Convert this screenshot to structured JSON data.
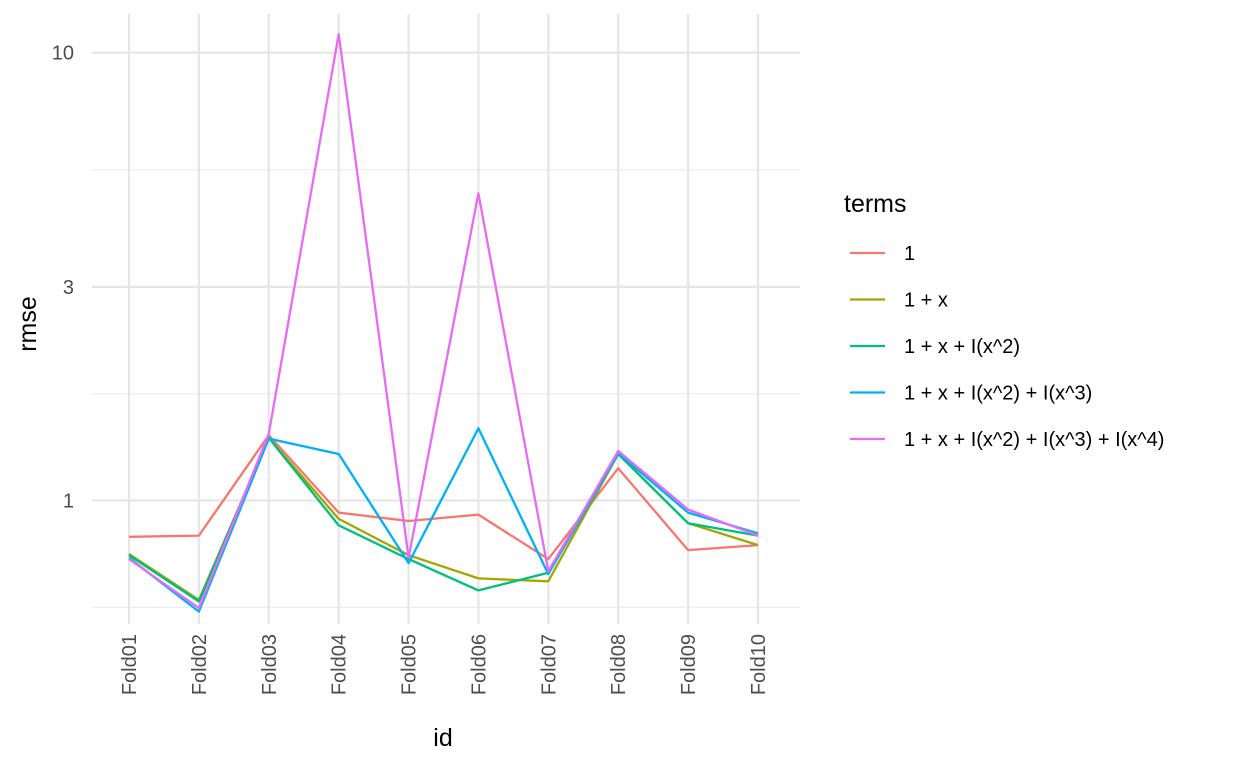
{
  "chart_data": {
    "type": "line",
    "xlabel": "id",
    "ylabel": "rmse",
    "y_scale": "log",
    "ylim": [
      0.53,
      12.2
    ],
    "y_ticks": [
      1,
      3,
      10
    ],
    "y_tick_labels": [
      "1",
      "3",
      "10"
    ],
    "grid": true,
    "legend_position": "right",
    "legend_title": "terms",
    "categories": [
      "Fold01",
      "Fold02",
      "Fold03",
      "Fold04",
      "Fold05",
      "Fold06",
      "Fold07",
      "Fold08",
      "Fold09",
      "Fold10"
    ],
    "series": [
      {
        "name": "1",
        "color": "#F8766D",
        "values": [
          0.83,
          0.835,
          1.4,
          0.94,
          0.9,
          0.93,
          0.74,
          1.18,
          0.775,
          0.795
        ]
      },
      {
        "name": "1 + x",
        "color": "#A3A500",
        "values": [
          0.76,
          0.6,
          1.38,
          0.91,
          0.755,
          0.67,
          0.66,
          1.27,
          0.89,
          0.795
        ]
      },
      {
        "name": "1 + x + I(x^2)",
        "color": "#00BF7D",
        "values": [
          0.755,
          0.595,
          1.38,
          0.88,
          0.74,
          0.63,
          0.69,
          1.27,
          0.89,
          0.835
        ]
      },
      {
        "name": "1 + x + I(x^2) + I(x^3)",
        "color": "#00B0F6",
        "values": [
          0.745,
          0.565,
          1.375,
          1.27,
          0.725,
          1.45,
          0.685,
          1.275,
          0.94,
          0.845
        ]
      },
      {
        "name": "1 + x + I(x^2) + I(x^3) + I(x^4)",
        "color": "#E76BF3",
        "values": [
          0.74,
          0.575,
          1.41,
          11.0,
          0.745,
          4.85,
          0.695,
          1.29,
          0.955,
          0.835
        ]
      }
    ]
  }
}
